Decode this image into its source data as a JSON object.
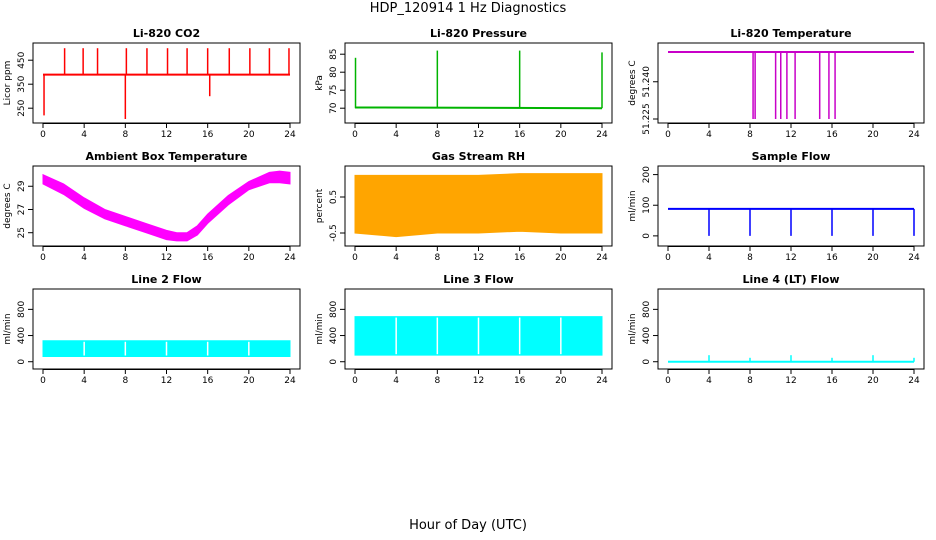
{
  "figure": {
    "title": "HDP_120914  1 Hz Diagnostics",
    "xlabel": "Hour of Day (UTC)"
  },
  "chart_data": [
    {
      "type": "line",
      "title": "Li-820 CO2",
      "ylabel": "Licor ppm",
      "color": "#ff0000",
      "xlim": [
        0,
        24
      ],
      "ylim": [
        205,
        505
      ],
      "xticks": [
        0,
        4,
        8,
        12,
        16,
        20,
        24
      ],
      "yticks": [
        250,
        350,
        450
      ],
      "base": {
        "x": [
          0,
          24
        ],
        "y": [
          390,
          390
        ]
      },
      "spikes": [
        {
          "x": 0.1,
          "y0": 390,
          "y1": 220
        },
        {
          "x": 2.1,
          "y0": 390,
          "y1": 500
        },
        {
          "x": 3.9,
          "y0": 390,
          "y1": 500
        },
        {
          "x": 5.3,
          "y0": 390,
          "y1": 500
        },
        {
          "x": 8.0,
          "y0": 390,
          "y1": 205
        },
        {
          "x": 8.1,
          "y0": 390,
          "y1": 500
        },
        {
          "x": 10.1,
          "y0": 390,
          "y1": 500
        },
        {
          "x": 12.1,
          "y0": 390,
          "y1": 500
        },
        {
          "x": 14.0,
          "y0": 390,
          "y1": 500
        },
        {
          "x": 16.0,
          "y0": 390,
          "y1": 500
        },
        {
          "x": 16.2,
          "y0": 390,
          "y1": 300
        },
        {
          "x": 18.1,
          "y0": 390,
          "y1": 500
        },
        {
          "x": 20.1,
          "y0": 390,
          "y1": 500
        },
        {
          "x": 22.0,
          "y0": 390,
          "y1": 500
        },
        {
          "x": 23.9,
          "y0": 390,
          "y1": 500
        }
      ]
    },
    {
      "type": "line",
      "title": "Li-820 Pressure",
      "ylabel": "kPa",
      "color": "#00b400",
      "xlim": [
        0,
        24
      ],
      "ylim": [
        67,
        87
      ],
      "xticks": [
        0,
        4,
        8,
        12,
        16,
        20,
        24
      ],
      "yticks": [
        70,
        75,
        80,
        85
      ],
      "base": {
        "x": [
          0,
          24
        ],
        "y": [
          70.2,
          70.0
        ]
      },
      "spikes": [
        {
          "x": 0.05,
          "y0": 70,
          "y1": 84
        },
        {
          "x": 8.0,
          "y0": 70,
          "y1": 86
        },
        {
          "x": 16.0,
          "y0": 70,
          "y1": 86
        },
        {
          "x": 24.0,
          "y0": 70,
          "y1": 85.5
        }
      ]
    },
    {
      "type": "line",
      "title": "Li-820 Temperature",
      "ylabel": "degrees C",
      "color": "#c800c8",
      "xlim": [
        0,
        24
      ],
      "ylim": [
        51.225,
        51.254
      ],
      "xticks": [
        0,
        4,
        8,
        12,
        16,
        20,
        24
      ],
      "yticks": [
        51.225,
        51.24
      ],
      "ytick_labels": [
        "51.225",
        "51.240"
      ],
      "base": {
        "x": [
          0,
          24
        ],
        "y": [
          51.252,
          51.252
        ]
      },
      "spikes": [
        {
          "x": 8.3,
          "y0": 51.252,
          "y1": 51.225
        },
        {
          "x": 8.5,
          "y0": 51.252,
          "y1": 51.225
        },
        {
          "x": 10.5,
          "y0": 51.252,
          "y1": 51.225
        },
        {
          "x": 11.0,
          "y0": 51.252,
          "y1": 51.225
        },
        {
          "x": 11.6,
          "y0": 51.252,
          "y1": 51.225
        },
        {
          "x": 12.4,
          "y0": 51.252,
          "y1": 51.225
        },
        {
          "x": 14.8,
          "y0": 51.252,
          "y1": 51.225
        },
        {
          "x": 15.7,
          "y0": 51.252,
          "y1": 51.225
        },
        {
          "x": 16.3,
          "y0": 51.252,
          "y1": 51.225
        }
      ]
    },
    {
      "type": "area",
      "title": "Ambient Box Temperature",
      "ylabel": "degrees C",
      "color": "#ff00ff",
      "xlim": [
        0,
        24
      ],
      "ylim": [
        24.2,
        30.4
      ],
      "xticks": [
        0,
        4,
        8,
        12,
        16,
        20,
        24
      ],
      "yticks": [
        25,
        27,
        29
      ],
      "x": [
        0,
        2,
        4,
        6,
        8,
        10,
        12,
        13,
        14,
        15,
        16,
        18,
        20,
        22,
        23,
        24
      ],
      "upper": [
        30.0,
        29.2,
        28.0,
        27.0,
        26.4,
        25.8,
        25.2,
        25.0,
        25.0,
        25.6,
        26.6,
        28.2,
        29.4,
        30.2,
        30.3,
        30.2
      ],
      "lower": [
        29.2,
        28.3,
        27.1,
        26.2,
        25.6,
        25.0,
        24.4,
        24.3,
        24.3,
        24.8,
        25.8,
        27.4,
        28.7,
        29.3,
        29.3,
        29.2
      ]
    },
    {
      "type": "area",
      "title": "Gas Stream RH",
      "ylabel": "percent",
      "color": "#ffa500",
      "xlim": [
        0,
        24
      ],
      "ylim": [
        -0.75,
        1.25
      ],
      "xticks": [
        0,
        4,
        8,
        12,
        16,
        20,
        24
      ],
      "yticks": [
        -0.5,
        0.5
      ],
      "x": [
        0,
        4,
        8,
        12,
        16,
        20,
        24
      ],
      "upper": [
        1.1,
        1.1,
        1.1,
        1.1,
        1.15,
        1.15,
        1.15
      ],
      "lower": [
        -0.5,
        -0.6,
        -0.5,
        -0.5,
        -0.45,
        -0.5,
        -0.5
      ]
    },
    {
      "type": "line",
      "title": "Sample Flow",
      "ylabel": "ml/min",
      "color": "#0000ff",
      "xlim": [
        0,
        24
      ],
      "ylim": [
        -20,
        215
      ],
      "xticks": [
        0,
        4,
        8,
        12,
        16,
        20,
        24
      ],
      "yticks": [
        0,
        100,
        200
      ],
      "base": {
        "x": [
          0,
          24
        ],
        "y": [
          88,
          88
        ]
      },
      "spikes": [
        {
          "x": 4.0,
          "y0": 88,
          "y1": 0
        },
        {
          "x": 8.0,
          "y0": 88,
          "y1": 0
        },
        {
          "x": 12.0,
          "y0": 88,
          "y1": 0
        },
        {
          "x": 16.0,
          "y0": 88,
          "y1": 0
        },
        {
          "x": 20.0,
          "y0": 88,
          "y1": 0
        },
        {
          "x": 24.0,
          "y0": 88,
          "y1": 0
        }
      ]
    },
    {
      "type": "area",
      "title": "Line 2 Flow",
      "ylabel": "ml/min",
      "color": "#00ffff",
      "xlim": [
        0,
        24
      ],
      "ylim": [
        -50,
        1050
      ],
      "xticks": [
        0,
        4,
        8,
        12,
        16,
        20,
        24
      ],
      "yticks": [
        0,
        400,
        800
      ],
      "x": [
        0,
        24
      ],
      "upper": [
        320,
        320
      ],
      "lower": [
        80,
        80
      ],
      "gaps": [
        4,
        8,
        12,
        16,
        20
      ]
    },
    {
      "type": "area",
      "title": "Line 3 Flow",
      "ylabel": "ml/min",
      "color": "#00ffff",
      "xlim": [
        0,
        24
      ],
      "ylim": [
        -50,
        1050
      ],
      "xticks": [
        0,
        4,
        8,
        12,
        16,
        20,
        24
      ],
      "yticks": [
        0,
        400,
        800
      ],
      "x": [
        0,
        24
      ],
      "upper": [
        690,
        690
      ],
      "lower": [
        100,
        100
      ],
      "gaps": [
        4,
        8,
        12,
        16,
        20
      ]
    },
    {
      "type": "line",
      "title": "Line 4 (LT) Flow",
      "ylabel": "ml/min",
      "color": "#00ffff",
      "xlim": [
        0,
        24
      ],
      "ylim": [
        -50,
        1050
      ],
      "xticks": [
        0,
        4,
        8,
        12,
        16,
        20,
        24
      ],
      "yticks": [
        0,
        400,
        800
      ],
      "base": {
        "x": [
          0,
          24
        ],
        "y": [
          0,
          0
        ]
      },
      "spikes": [
        {
          "x": 4.0,
          "y0": 0,
          "y1": 100
        },
        {
          "x": 8.0,
          "y0": 0,
          "y1": 60
        },
        {
          "x": 12.0,
          "y0": 0,
          "y1": 100
        },
        {
          "x": 16.0,
          "y0": 0,
          "y1": 60
        },
        {
          "x": 20.0,
          "y0": 0,
          "y1": 100
        },
        {
          "x": 24.0,
          "y0": 0,
          "y1": 60
        }
      ]
    }
  ]
}
